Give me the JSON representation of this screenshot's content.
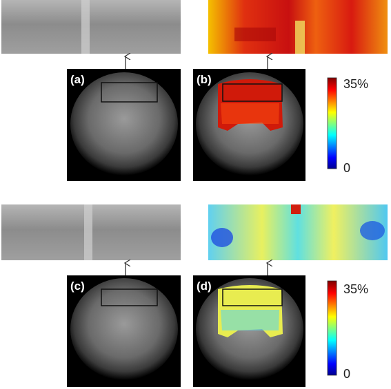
{
  "panels": [
    {
      "label": "(a)"
    },
    {
      "label": "(b)"
    },
    {
      "label": "(c)"
    },
    {
      "label": "(d)"
    }
  ],
  "colorbars": [
    {
      "max_label": "35%",
      "min_label": "0"
    },
    {
      "max_label": "35%",
      "min_label": "0"
    }
  ]
}
